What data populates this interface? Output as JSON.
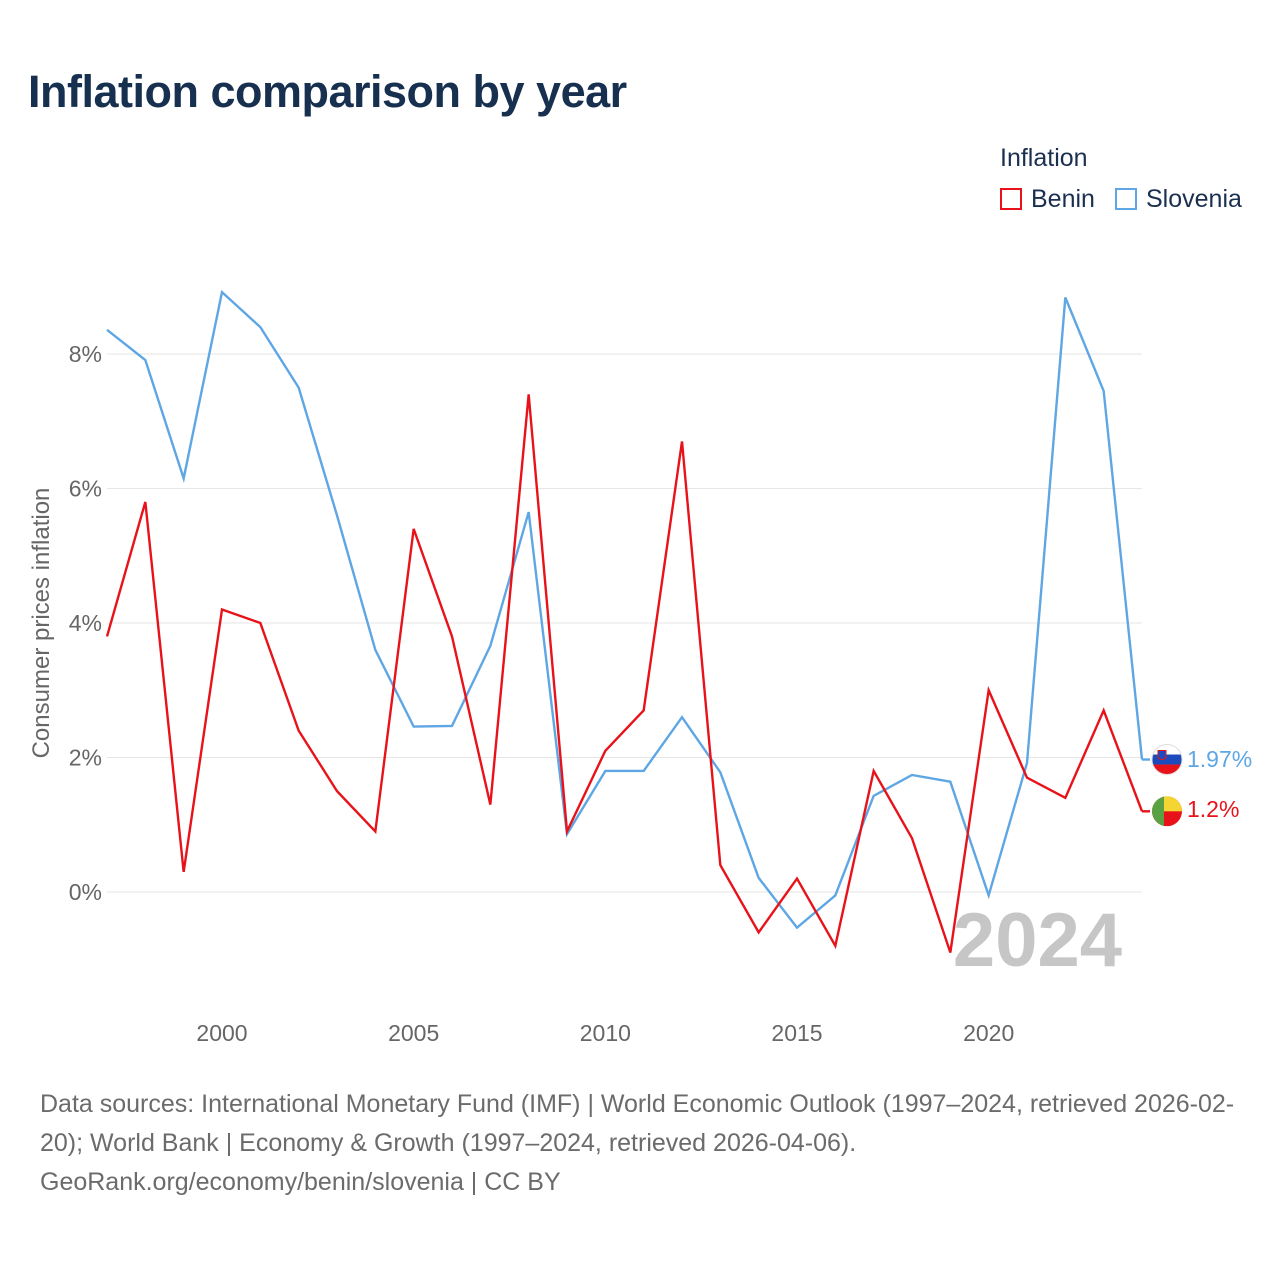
{
  "title": "Inflation comparison by year",
  "legend": {
    "title": "Inflation",
    "items": [
      {
        "label": "Benin",
        "color": "#e8131a"
      },
      {
        "label": "Slovenia",
        "color": "#5ea6e4"
      }
    ]
  },
  "year_watermark": "2024",
  "end_labels": {
    "slovenia": "1.97%",
    "benin": "1.2%"
  },
  "sources": {
    "line1": "Data sources: International Monetary Fund (IMF) | World Economic Outlook (1997–2024, retrieved 2026-02-20); World Bank | Economy & Growth (1997–2024, retrieved 2026-04-06).",
    "line2": "GeoRank.org/economy/benin/slovenia | CC BY"
  },
  "chart_data": {
    "type": "line",
    "title": "Inflation comparison by year",
    "xlabel": "",
    "ylabel": "Consumer prices inflation",
    "xlim": [
      1997,
      2024
    ],
    "ylim": [
      -1.8,
      9
    ],
    "grid": true,
    "legend_position": "top-right",
    "x_ticks": [
      2000,
      2005,
      2010,
      2015,
      2020
    ],
    "x_tick_labels": [
      "2000",
      "2005",
      "2010",
      "2015",
      "2020"
    ],
    "y_ticks": [
      0,
      2,
      4,
      6,
      8
    ],
    "y_tick_labels": [
      "0%",
      "2%",
      "4%",
      "6%",
      "8%"
    ],
    "x": [
      1997,
      1998,
      1999,
      2000,
      2001,
      2002,
      2003,
      2004,
      2005,
      2006,
      2007,
      2008,
      2009,
      2010,
      2011,
      2012,
      2013,
      2014,
      2015,
      2016,
      2017,
      2018,
      2019,
      2020,
      2021,
      2022,
      2023,
      2024
    ],
    "series": [
      {
        "name": "Slovenia",
        "color": "#5ea6e4",
        "values": [
          8.36,
          7.91,
          6.15,
          8.92,
          8.4,
          7.5,
          5.6,
          3.6,
          2.46,
          2.47,
          3.66,
          5.65,
          0.86,
          1.8,
          1.8,
          2.6,
          1.78,
          0.21,
          -0.53,
          -0.05,
          1.43,
          1.74,
          1.64,
          -0.05,
          1.92,
          8.84,
          7.45,
          1.97
        ]
      },
      {
        "name": "Benin",
        "color": "#e8131a",
        "values": [
          3.8,
          5.8,
          0.3,
          4.2,
          4.0,
          2.4,
          1.5,
          0.9,
          5.4,
          3.8,
          1.3,
          7.4,
          0.9,
          2.1,
          2.7,
          6.7,
          0.4,
          -0.6,
          0.2,
          -0.8,
          1.8,
          0.8,
          -0.9,
          3.0,
          1.7,
          1.4,
          2.7,
          1.2
        ]
      }
    ]
  }
}
